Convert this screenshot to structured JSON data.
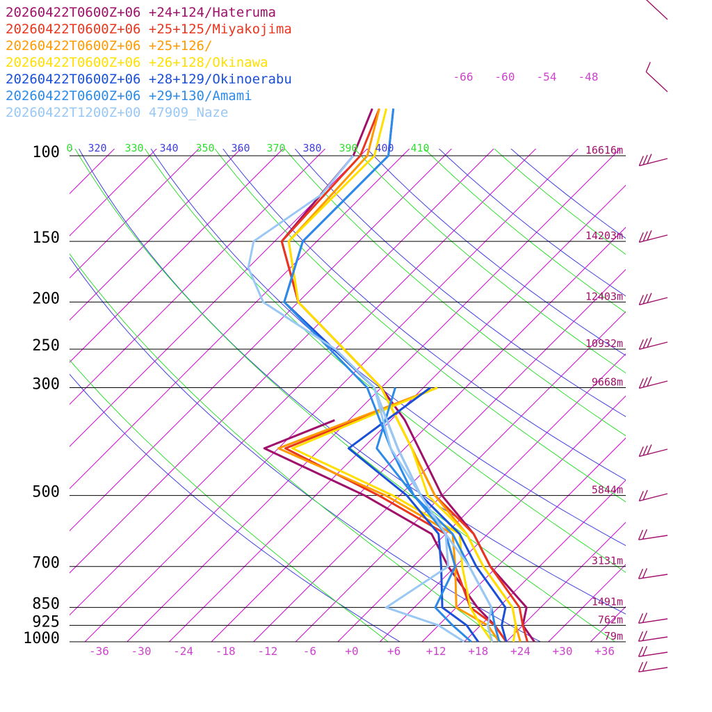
{
  "chart_data": {
    "type": "line",
    "subtype": "skew-t sounding",
    "legend_position": "top-left",
    "grid": true,
    "colors": {
      "isotherm": "#d000d0",
      "dry_adiabat": "#4040e0",
      "moist_adiabat": "#30e030",
      "isobar": "#000000",
      "label_magenta": "#cc44cc",
      "height_label": "#a0106a"
    },
    "pressure_levels": [
      100,
      150,
      200,
      250,
      300,
      500,
      700,
      850,
      925,
      1000
    ],
    "pressure_labels": [
      "100",
      "150",
      "200",
      "250",
      "300",
      "500",
      "700",
      "850",
      "925",
      "1000"
    ],
    "height_labels": [
      {
        "p": 100,
        "text": "16616m"
      },
      {
        "p": 150,
        "text": "14203m"
      },
      {
        "p": 200,
        "text": "12403m"
      },
      {
        "p": 250,
        "text": "10932m"
      },
      {
        "p": 300,
        "text": "9668m"
      },
      {
        "p": 500,
        "text": "5844m"
      },
      {
        "p": 700,
        "text": "3131m"
      },
      {
        "p": 850,
        "text": "1491m"
      },
      {
        "p": 925,
        "text": "762m"
      },
      {
        "p": 1000,
        "text": "79m"
      }
    ],
    "x_ticks": [
      -36,
      -30,
      -24,
      -18,
      -12,
      -6,
      0,
      6,
      12,
      18,
      24,
      30,
      36
    ],
    "x_tick_labels": [
      "-36",
      "-30",
      "-24",
      "-18",
      "-12",
      "-6",
      "+0",
      "+6",
      "+12",
      "+18",
      "+24",
      "+30",
      "+36"
    ],
    "top_temp_labels": [
      "-66",
      "-60",
      "-54",
      "-48"
    ],
    "theta_labels": [
      {
        "text": "0",
        "color": "moist"
      },
      {
        "text": "320",
        "color": "dry"
      },
      {
        "text": "330",
        "color": "moist"
      },
      {
        "text": "340",
        "color": "dry"
      },
      {
        "text": "350",
        "color": "moist"
      },
      {
        "text": "360",
        "color": "dry"
      },
      {
        "text": "370",
        "color": "moist"
      },
      {
        "text": "380",
        "color": "dry"
      },
      {
        "text": "390",
        "color": "moist"
      },
      {
        "text": "400",
        "color": "dry"
      },
      {
        "text": "410",
        "color": "moist"
      }
    ],
    "series": [
      {
        "name": "20260422T0600Z+06 +24+124/Hateruma",
        "color": "#a0106a",
        "temp": [
          [
            80,
            -73
          ],
          [
            100,
            -69
          ],
          [
            150,
            -67
          ],
          [
            200,
            -56
          ],
          [
            300,
            -32
          ],
          [
            350,
            -24
          ],
          [
            400,
            -18
          ],
          [
            500,
            -8
          ],
          [
            600,
            2
          ],
          [
            700,
            9
          ],
          [
            850,
            20
          ],
          [
            925,
            22
          ],
          [
            1000,
            26
          ]
        ],
        "dew": [
          [
            350,
            -34
          ],
          [
            400,
            -40
          ],
          [
            500,
            -19
          ],
          [
            600,
            -4
          ],
          [
            700,
            3
          ],
          [
            850,
            13
          ],
          [
            925,
            18
          ],
          [
            1000,
            22
          ]
        ]
      },
      {
        "name": "20260422T0600Z+06 +25+125/Miyakojima",
        "color": "#e8361f",
        "temp": [
          [
            80,
            -72
          ],
          [
            100,
            -68
          ],
          [
            150,
            -67
          ],
          [
            200,
            -56
          ],
          [
            300,
            -32
          ],
          [
            400,
            -19
          ],
          [
            500,
            -9
          ],
          [
            600,
            2
          ],
          [
            700,
            9
          ],
          [
            850,
            19
          ],
          [
            925,
            22
          ],
          [
            1000,
            25
          ]
        ],
        "dew": [
          [
            300,
            -24
          ],
          [
            400,
            -37
          ],
          [
            500,
            -17
          ],
          [
            600,
            -2
          ],
          [
            700,
            4
          ],
          [
            850,
            12
          ],
          [
            925,
            18
          ],
          [
            1000,
            22
          ]
        ]
      },
      {
        "name": "20260422T0600Z+06 +25+126/",
        "color": "#ff9a00",
        "temp": [
          [
            80,
            -72
          ],
          [
            100,
            -67
          ],
          [
            150,
            -66
          ],
          [
            200,
            -56
          ],
          [
            300,
            -32
          ],
          [
            400,
            -19
          ],
          [
            500,
            -9
          ],
          [
            600,
            1
          ],
          [
            700,
            8
          ],
          [
            850,
            18
          ],
          [
            925,
            21
          ],
          [
            1000,
            24
          ]
        ],
        "dew": [
          [
            300,
            -24
          ],
          [
            400,
            -38
          ],
          [
            500,
            -16
          ],
          [
            600,
            -1
          ],
          [
            700,
            4
          ],
          [
            850,
            10
          ],
          [
            925,
            17
          ],
          [
            1000,
            21
          ]
        ]
      },
      {
        "name": "20260422T0600Z+06 +26+128/Okinawa",
        "color": "#ffe000",
        "temp": [
          [
            80,
            -71
          ],
          [
            100,
            -66
          ],
          [
            150,
            -66
          ],
          [
            200,
            -56
          ],
          [
            300,
            -32
          ],
          [
            400,
            -19
          ],
          [
            500,
            -10
          ],
          [
            600,
            1
          ],
          [
            700,
            8
          ],
          [
            850,
            18
          ],
          [
            925,
            21
          ],
          [
            1000,
            23
          ]
        ],
        "dew": [
          [
            300,
            -24
          ],
          [
            400,
            -36
          ],
          [
            500,
            -15
          ],
          [
            600,
            0
          ],
          [
            700,
            5
          ],
          [
            850,
            12
          ],
          [
            925,
            16
          ],
          [
            1000,
            20
          ]
        ]
      },
      {
        "name": "20260422T0600Z+06 +28+129/Okinoerabu",
        "color": "#1a4fd8",
        "temp": [
          [
            80,
            -70
          ],
          [
            100,
            -64
          ],
          [
            150,
            -64
          ],
          [
            200,
            -58
          ],
          [
            300,
            -33
          ],
          [
            400,
            -21
          ],
          [
            500,
            -11
          ],
          [
            600,
            0
          ],
          [
            700,
            7
          ],
          [
            850,
            17
          ],
          [
            925,
            19
          ],
          [
            1000,
            22
          ]
        ],
        "dew": [
          [
            300,
            -25
          ],
          [
            400,
            -28
          ],
          [
            500,
            -13
          ],
          [
            600,
            -3
          ],
          [
            700,
            2
          ],
          [
            850,
            8
          ],
          [
            925,
            14
          ],
          [
            1000,
            18
          ]
        ]
      },
      {
        "name": "20260422T0600Z+06 +29+130/Amami",
        "color": "#2d8be8",
        "temp": [
          [
            80,
            -70
          ],
          [
            100,
            -64
          ],
          [
            150,
            -64
          ],
          [
            200,
            -58
          ],
          [
            300,
            -34
          ],
          [
            400,
            -22
          ],
          [
            500,
            -12
          ],
          [
            600,
            -1
          ],
          [
            700,
            6
          ],
          [
            850,
            15
          ],
          [
            925,
            18
          ],
          [
            1000,
            21
          ]
        ],
        "dew": [
          [
            300,
            -30
          ],
          [
            400,
            -24
          ],
          [
            500,
            -12
          ],
          [
            600,
            -2
          ],
          [
            700,
            4
          ],
          [
            850,
            7
          ],
          [
            925,
            12
          ],
          [
            1000,
            17
          ]
        ]
      },
      {
        "name": "20260422T1200Z+00 47909_Naze",
        "color": "#99c8f5",
        "temp": [
          [
            100,
            -69
          ],
          [
            120,
            -68
          ],
          [
            150,
            -71
          ],
          [
            170,
            -68
          ],
          [
            200,
            -61
          ],
          [
            250,
            -44
          ],
          [
            300,
            -33
          ],
          [
            400,
            -21
          ],
          [
            500,
            -11
          ],
          [
            600,
            -2
          ],
          [
            700,
            6
          ],
          [
            850,
            15
          ],
          [
            925,
            17
          ],
          [
            1000,
            20
          ]
        ],
        "dew": [
          [
            300,
            -33
          ],
          [
            400,
            -22
          ],
          [
            500,
            -11
          ],
          [
            600,
            -2
          ],
          [
            700,
            3
          ],
          [
            850,
            0
          ],
          [
            925,
            10
          ],
          [
            1000,
            16
          ]
        ]
      }
    ]
  }
}
